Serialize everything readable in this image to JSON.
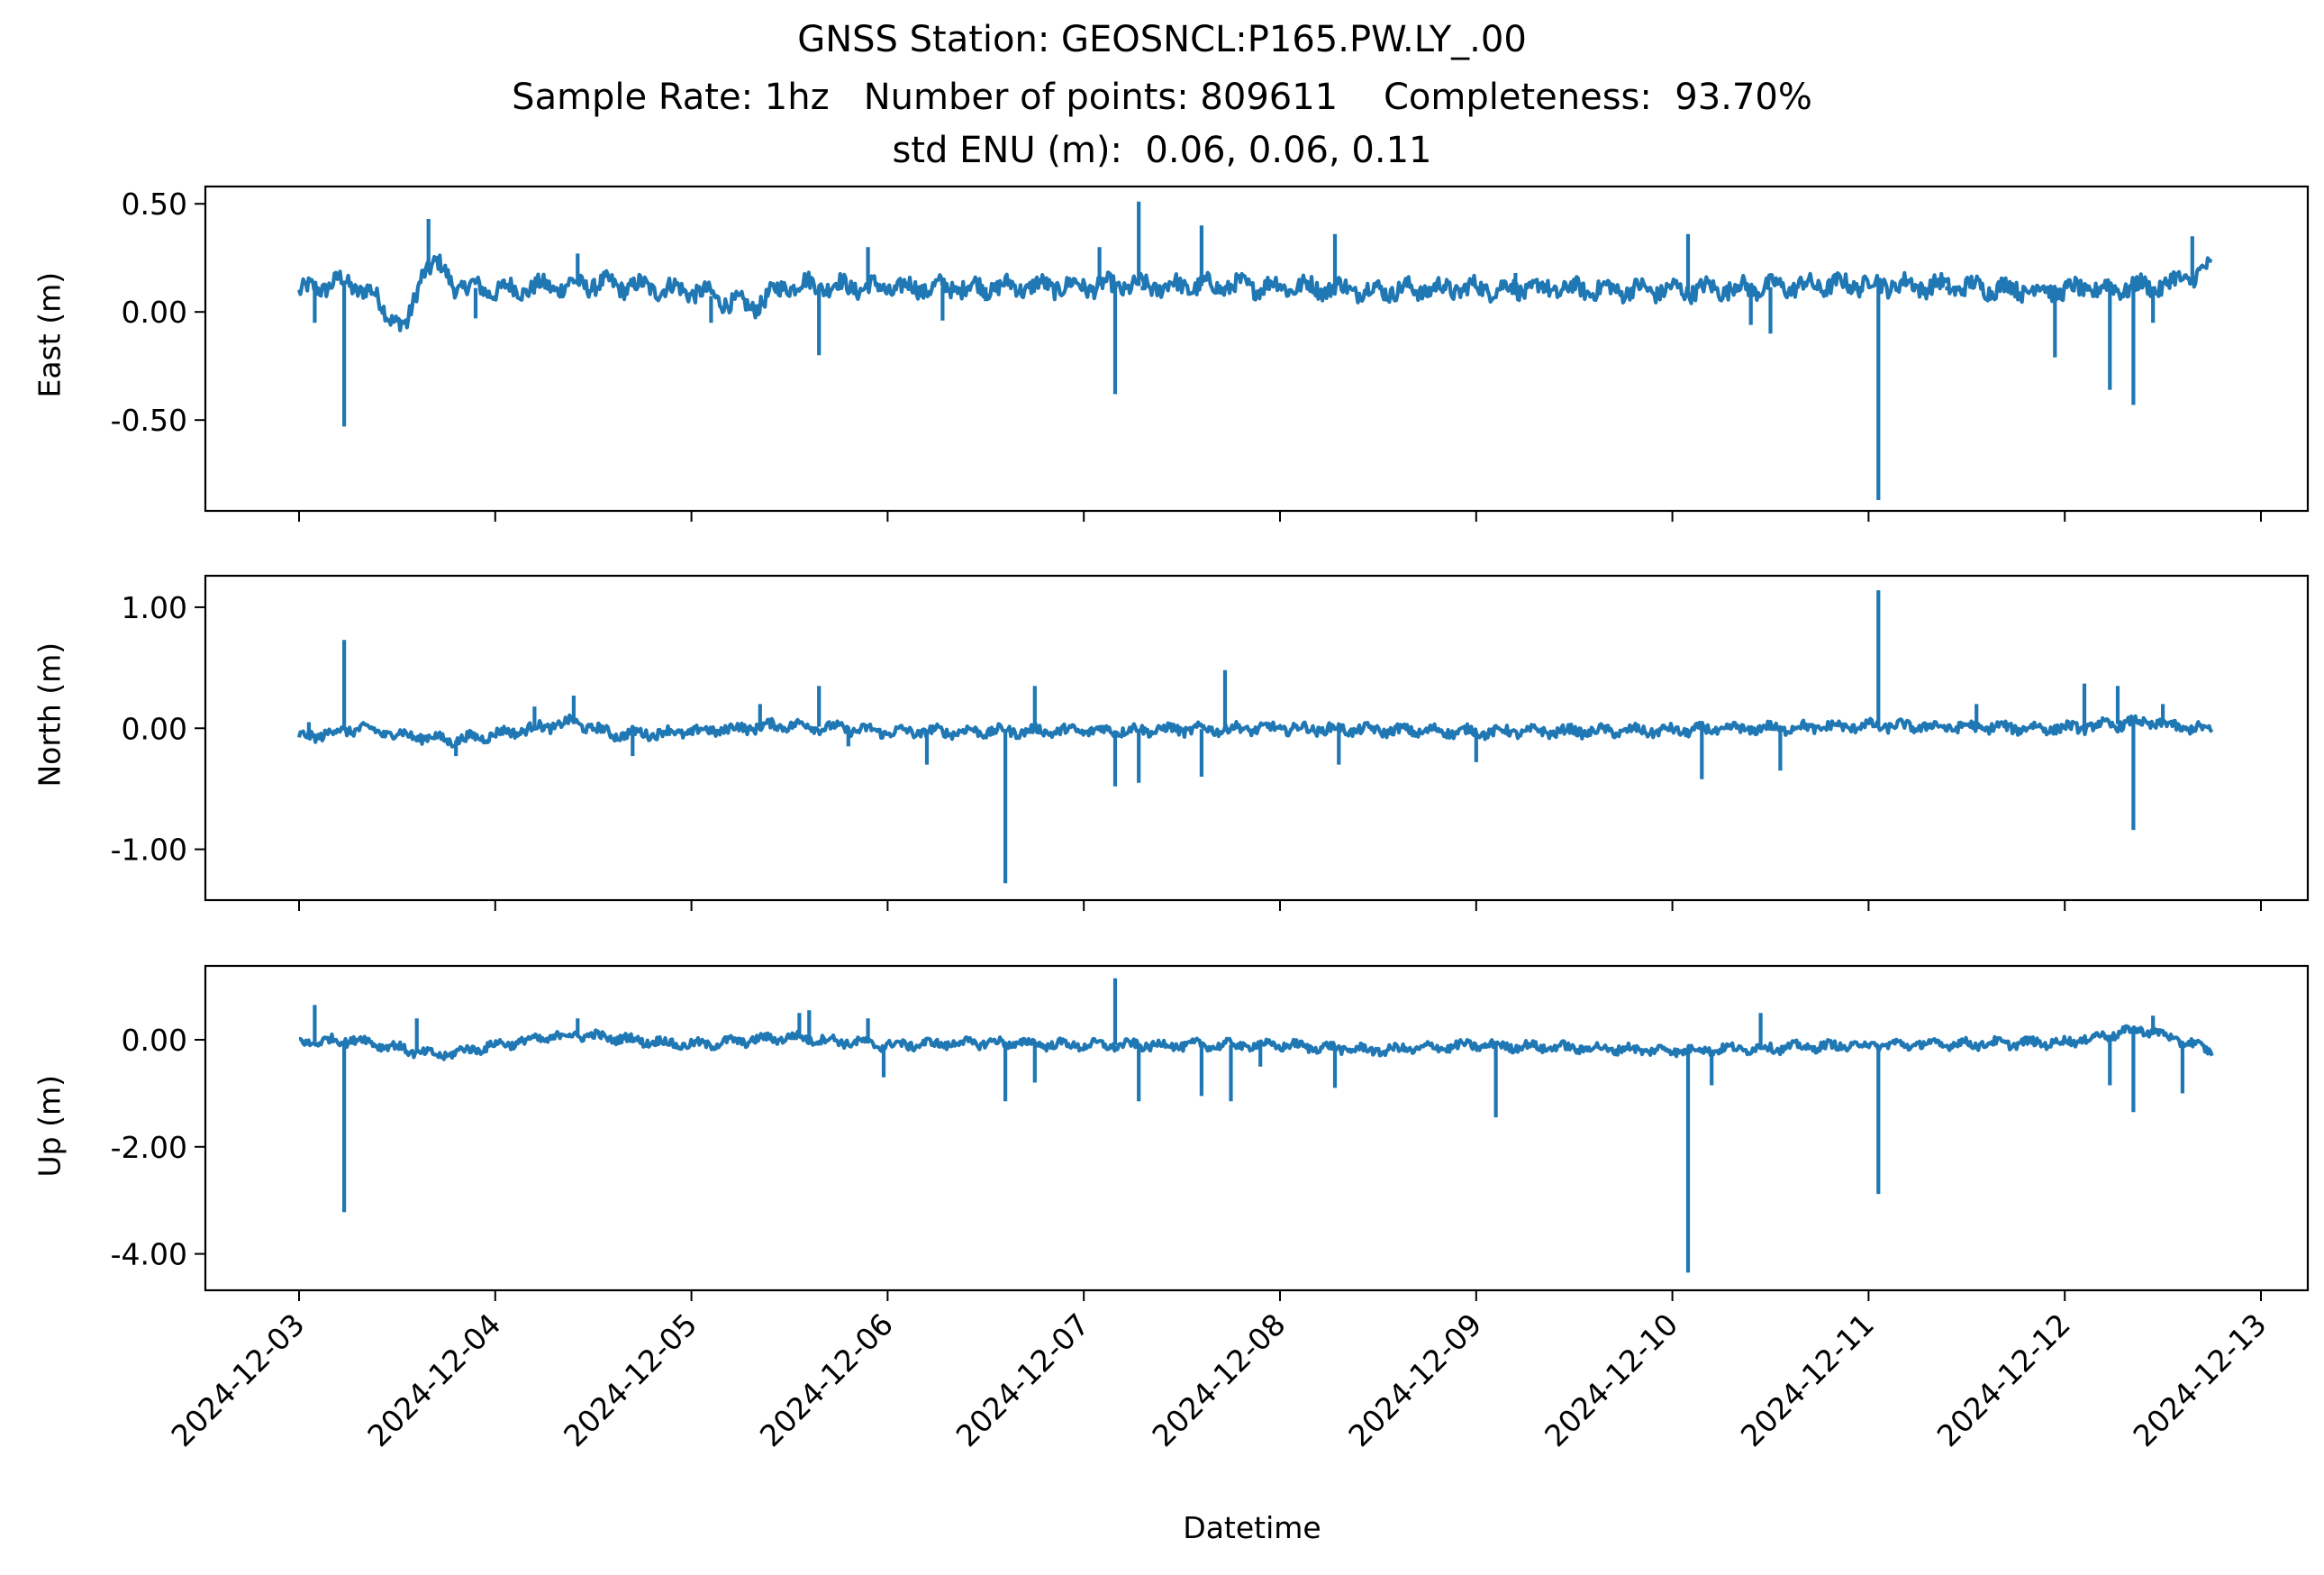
{
  "chart_data": {
    "type": "line",
    "title": {
      "line1": "GNSS Station: GEOSNCL:P165.PW.LY_.00",
      "line2": "Sample Rate: 1hz   Number of points: 809611    Completeness:  93.70%",
      "line3": "std ENU (m):  0.06, 0.06, 0.11"
    },
    "xlabel": "Datetime",
    "x_ticks": [
      "2024-12-03",
      "2024-12-04",
      "2024-12-05",
      "2024-12-06",
      "2024-12-07",
      "2024-12-08",
      "2024-12-09",
      "2024-12-10",
      "2024-12-11",
      "2024-12-12",
      "2024-12-13"
    ],
    "x_range_days": [
      "2024-12-03",
      "2024-12-12 18:00"
    ],
    "line_color": "#1f77b4",
    "panels": [
      {
        "name": "East",
        "ylabel": "East (m)",
        "ylim": [
          -0.92,
          0.58
        ],
        "y_ticks": [
          0.5,
          0.0,
          -0.5
        ],
        "y_tick_labels": [
          "0.50",
          "0.00",
          "-0.50"
        ],
        "baseline": 0.11,
        "noise": 0.04,
        "wave_points": [
          [
            0,
            0.09
          ],
          [
            0.2,
            0.14
          ],
          [
            0.35,
            0.1
          ],
          [
            0.45,
            0.0
          ],
          [
            0.55,
            -0.08
          ],
          [
            0.63,
            0.2
          ],
          [
            0.7,
            0.22
          ],
          [
            0.8,
            0.12
          ],
          [
            1.0,
            0.1
          ],
          [
            1.5,
            0.13
          ],
          [
            2.0,
            0.1
          ],
          [
            2.3,
            0.02
          ],
          [
            2.5,
            0.13
          ],
          [
            3.0,
            0.11
          ],
          [
            4.0,
            0.12
          ],
          [
            5.0,
            0.12
          ],
          [
            5.5,
            0.1
          ],
          [
            6.0,
            0.11
          ],
          [
            7.0,
            0.1
          ],
          [
            8.0,
            0.13
          ],
          [
            9.0,
            0.1
          ],
          [
            9.5,
            0.12
          ],
          [
            9.75,
            0.2
          ]
        ],
        "spikes": [
          [
            0.23,
            -0.53
          ],
          [
            0.08,
            -0.05
          ],
          [
            0.66,
            0.43
          ],
          [
            0.9,
            -0.03
          ],
          [
            1.42,
            0.27
          ],
          [
            2.1,
            -0.05
          ],
          [
            2.65,
            -0.2
          ],
          [
            2.9,
            0.3
          ],
          [
            3.28,
            -0.04
          ],
          [
            3.5,
            0.05
          ],
          [
            4.08,
            0.3
          ],
          [
            4.16,
            -0.38
          ],
          [
            4.28,
            0.51
          ],
          [
            4.3,
            0.1
          ],
          [
            4.6,
            0.4
          ],
          [
            5.28,
            0.36
          ],
          [
            6.2,
            0.18
          ],
          [
            7.08,
            0.36
          ],
          [
            7.4,
            -0.06
          ],
          [
            7.5,
            -0.1
          ],
          [
            8.05,
            -0.87
          ],
          [
            8.4,
            0.1
          ],
          [
            8.95,
            -0.21
          ],
          [
            9.23,
            -0.36
          ],
          [
            9.35,
            -0.43
          ],
          [
            9.45,
            -0.05
          ],
          [
            9.65,
            0.35
          ]
        ]
      },
      {
        "name": "North",
        "ylabel": "North (m)",
        "ylim": [
          -1.42,
          1.26
        ],
        "y_ticks": [
          1.0,
          0.0,
          -1.0
        ],
        "y_tick_labels": [
          "1.00",
          "0.00",
          "-1.00"
        ],
        "baseline": -0.03,
        "noise": 0.04,
        "wave_points": [
          [
            0,
            -0.08
          ],
          [
            0.3,
            0.0
          ],
          [
            0.5,
            -0.05
          ],
          [
            0.8,
            -0.1
          ],
          [
            1.0,
            -0.05
          ],
          [
            1.4,
            0.05
          ],
          [
            1.6,
            -0.05
          ],
          [
            2.0,
            -0.03
          ],
          [
            2.5,
            0.03
          ],
          [
            3.0,
            -0.03
          ],
          [
            4.0,
            -0.02
          ],
          [
            5.0,
            0.0
          ],
          [
            6.0,
            -0.03
          ],
          [
            7.0,
            -0.02
          ],
          [
            8.0,
            0.02
          ],
          [
            9.0,
            0.0
          ],
          [
            9.4,
            0.05
          ],
          [
            9.75,
            -0.02
          ]
        ],
        "spikes": [
          [
            0.23,
            0.73
          ],
          [
            0.05,
            0.05
          ],
          [
            0.8,
            -0.23
          ],
          [
            1.2,
            0.18
          ],
          [
            1.4,
            0.27
          ],
          [
            1.7,
            -0.23
          ],
          [
            2.35,
            0.2
          ],
          [
            2.65,
            0.35
          ],
          [
            2.8,
            -0.15
          ],
          [
            3.2,
            -0.3
          ],
          [
            3.6,
            -1.28
          ],
          [
            3.75,
            0.35
          ],
          [
            4.16,
            -0.48
          ],
          [
            4.28,
            -0.45
          ],
          [
            4.6,
            -0.4
          ],
          [
            4.72,
            0.48
          ],
          [
            5.3,
            -0.3
          ],
          [
            6.0,
            -0.28
          ],
          [
            7.15,
            -0.42
          ],
          [
            7.55,
            -0.35
          ],
          [
            8.05,
            1.14
          ],
          [
            8.55,
            0.2
          ],
          [
            9.1,
            0.37
          ],
          [
            9.27,
            0.35
          ],
          [
            9.35,
            -0.84
          ],
          [
            9.5,
            0.2
          ]
        ]
      },
      {
        "name": "Up",
        "ylabel": "Up (m)",
        "ylim": [
          -4.68,
          1.38
        ],
        "y_ticks": [
          0.0,
          -2.0,
          -4.0
        ],
        "y_tick_labels": [
          "0.00",
          "-2.00",
          "-4.00"
        ],
        "baseline": -0.1,
        "noise": 0.08,
        "wave_points": [
          [
            0,
            -0.05
          ],
          [
            0.3,
            0.0
          ],
          [
            0.7,
            -0.3
          ],
          [
            1.0,
            -0.1
          ],
          [
            1.4,
            0.1
          ],
          [
            2.0,
            -0.1
          ],
          [
            2.5,
            0.05
          ],
          [
            3.0,
            -0.1
          ],
          [
            3.5,
            -0.05
          ],
          [
            4.0,
            -0.1
          ],
          [
            5.0,
            -0.1
          ],
          [
            5.5,
            -0.2
          ],
          [
            6.0,
            -0.1
          ],
          [
            7.0,
            -0.2
          ],
          [
            8.0,
            -0.1
          ],
          [
            9.0,
            -0.05
          ],
          [
            9.4,
            0.2
          ],
          [
            9.75,
            -0.2
          ]
        ],
        "spikes": [
          [
            0.23,
            -3.22
          ],
          [
            0.08,
            0.65
          ],
          [
            0.6,
            0.4
          ],
          [
            1.42,
            0.4
          ],
          [
            2.55,
            0.5
          ],
          [
            2.6,
            0.55
          ],
          [
            2.9,
            0.4
          ],
          [
            2.98,
            -0.7
          ],
          [
            3.6,
            -1.15
          ],
          [
            3.75,
            -0.8
          ],
          [
            4.16,
            1.15
          ],
          [
            4.28,
            -1.15
          ],
          [
            4.6,
            -1.05
          ],
          [
            4.75,
            -1.15
          ],
          [
            4.9,
            -0.5
          ],
          [
            5.28,
            -0.9
          ],
          [
            6.1,
            -1.45
          ],
          [
            7.08,
            -4.35
          ],
          [
            7.2,
            -0.85
          ],
          [
            7.45,
            0.5
          ],
          [
            8.05,
            -2.88
          ],
          [
            9.23,
            -0.85
          ],
          [
            9.35,
            -1.35
          ],
          [
            9.45,
            0.45
          ],
          [
            9.6,
            -1.0
          ]
        ]
      }
    ]
  }
}
